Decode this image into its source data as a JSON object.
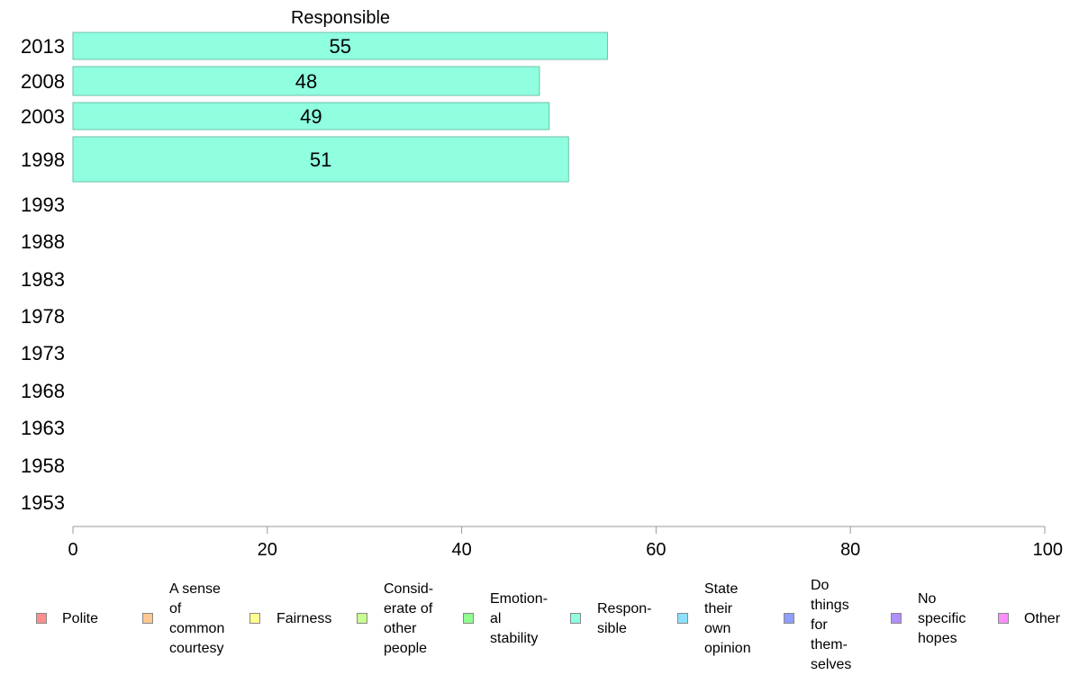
{
  "chart_data": {
    "type": "bar",
    "orientation": "horizontal",
    "title": "Responsible",
    "categories": [
      "2013",
      "2008",
      "2003",
      "1998",
      "1993",
      "1988",
      "1983",
      "1978",
      "1973",
      "1968",
      "1963",
      "1958",
      "1953"
    ],
    "series": [
      {
        "name": "Responsible",
        "values": [
          55,
          48,
          49,
          51,
          null,
          null,
          null,
          null,
          null,
          null,
          null,
          null,
          null
        ]
      }
    ],
    "data_labels": [
      "55",
      "48",
      "49",
      "51"
    ],
    "xlim": [
      0,
      100
    ],
    "x_ticks": [
      "0",
      "20",
      "40",
      "60",
      "80",
      "100"
    ],
    "xlabel": "",
    "ylabel": "",
    "grid": false,
    "bar_color": "#8fffe0",
    "legend_placement": "bottom",
    "legend": [
      {
        "label": "Polite",
        "color": "#ff8f8f"
      },
      {
        "label": "A sense\nof\ncommon\ncourtesy",
        "color": "#ffc88f"
      },
      {
        "label": "Fairness",
        "color": "#ffff8f"
      },
      {
        "label": "Consid-\nerate of\nother\npeople",
        "color": "#c8ff8f"
      },
      {
        "label": "Emotion-\nal\nstability",
        "color": "#8fff8f"
      },
      {
        "label": "Respon-\nsible",
        "color": "#8fffe0"
      },
      {
        "label": "State\ntheir\nown\nopinion",
        "color": "#8fe0ff"
      },
      {
        "label": "Do\nthings\nfor\nthem-\nselves",
        "color": "#8f9fff"
      },
      {
        "label": "No\nspecific\nhopes",
        "color": "#b08fff"
      },
      {
        "label": "Other",
        "color": "#ff8fff"
      }
    ]
  }
}
